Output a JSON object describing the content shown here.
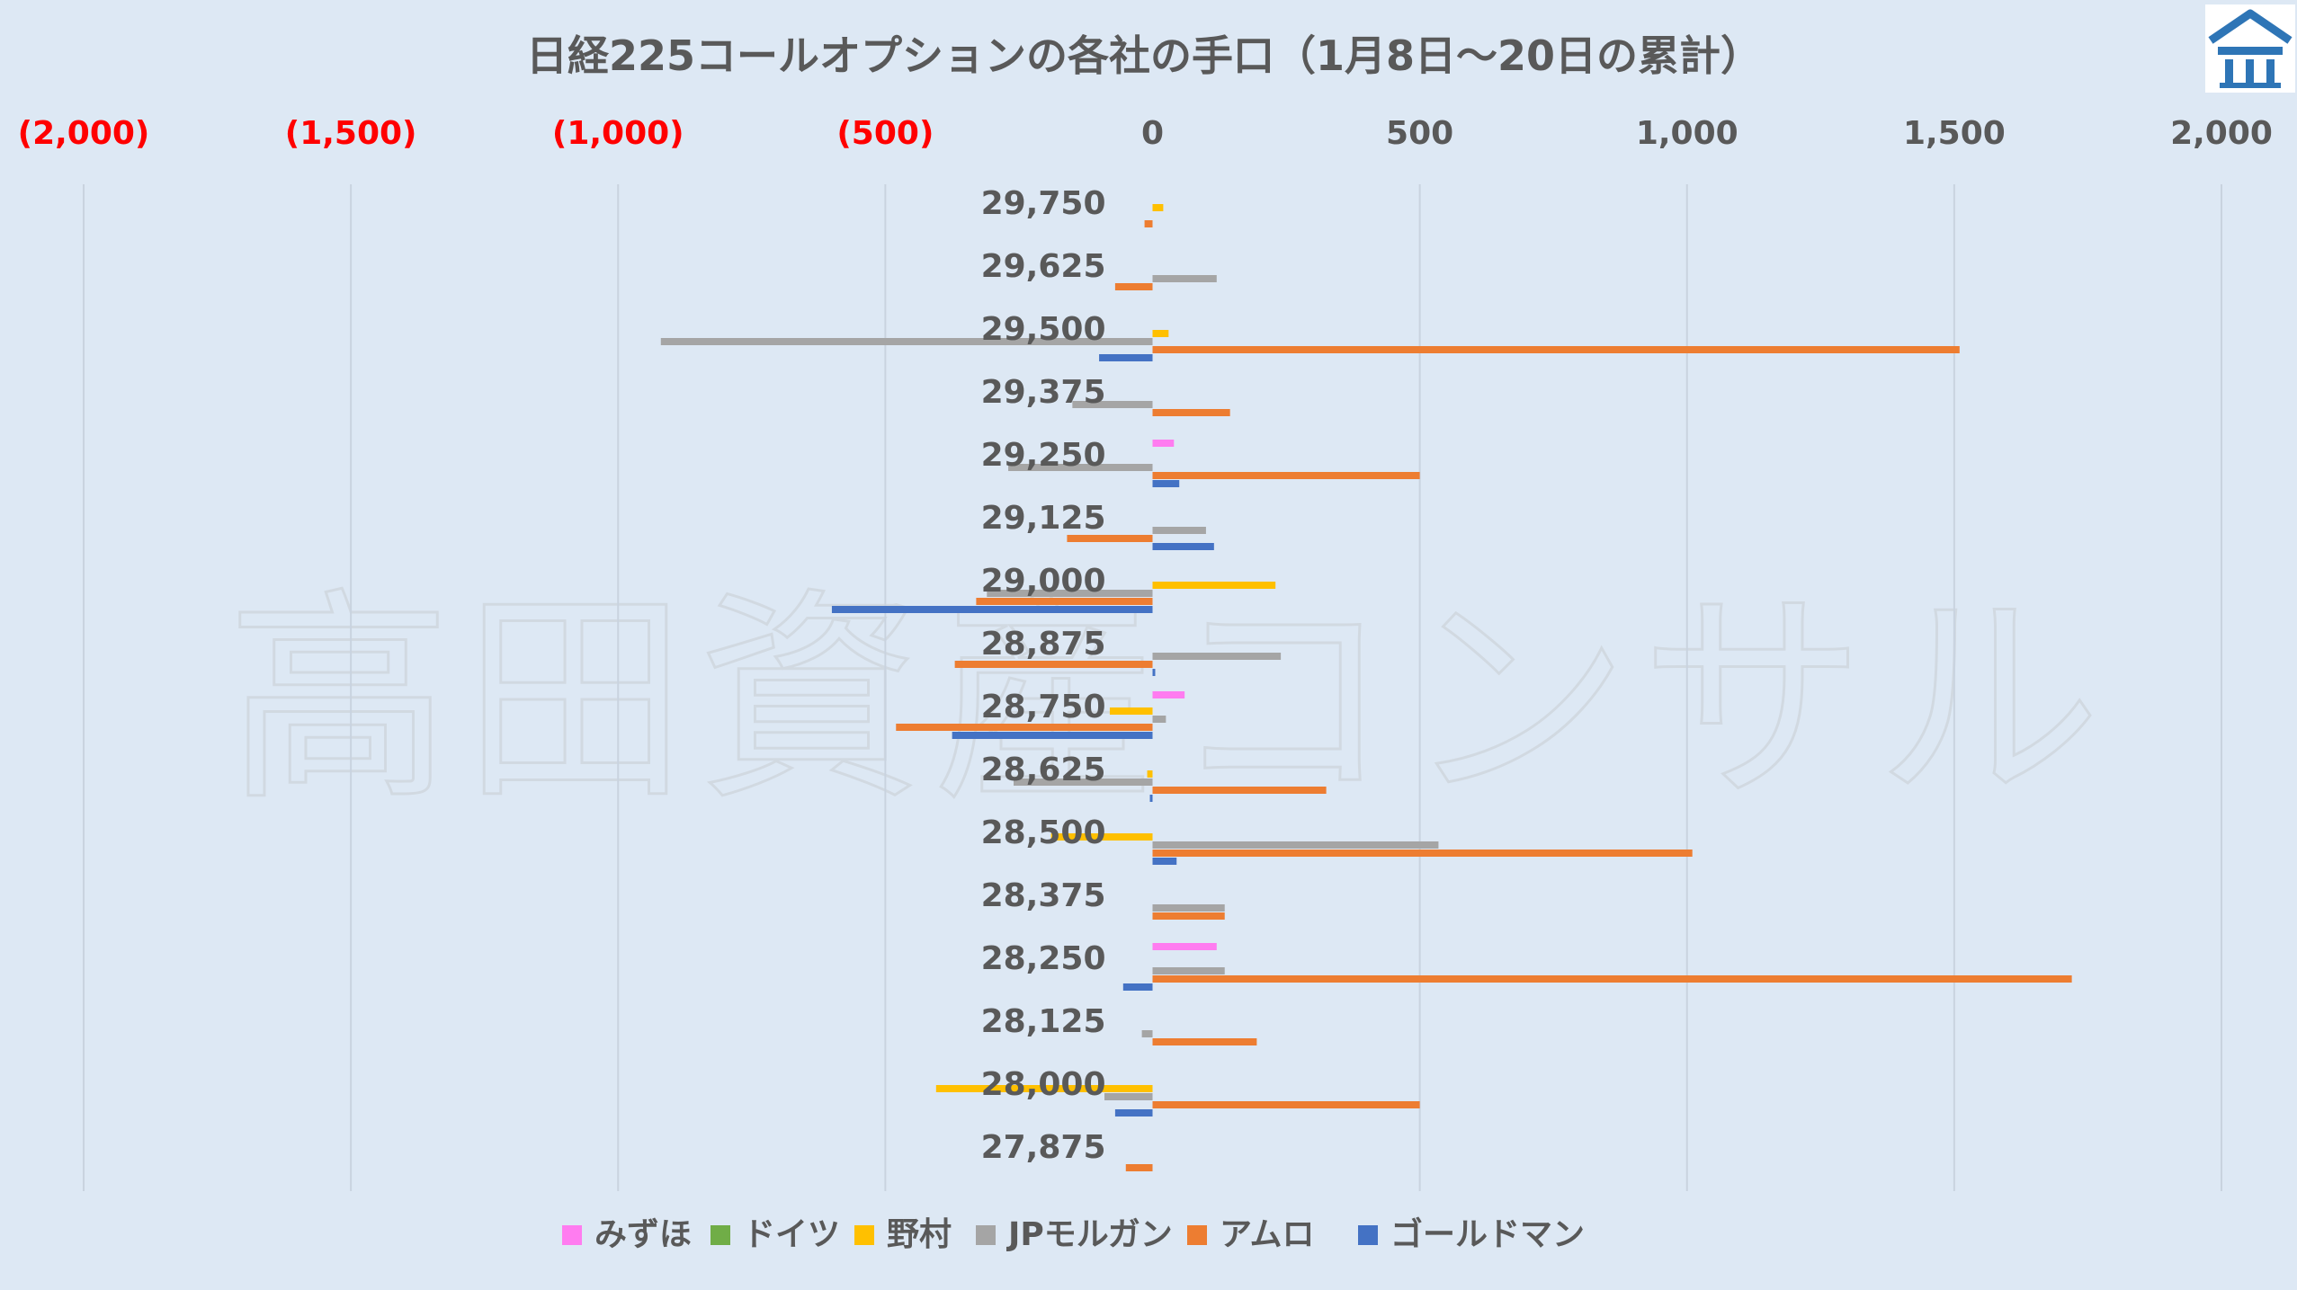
{
  "watermark": "高田資産コンサル",
  "logo": {
    "name": "takada-logo-icon",
    "color": "#2e75b6"
  },
  "chart_data": {
    "type": "bar",
    "orientation": "horizontal",
    "title": "日経225コールオプションの各社の手口（1月8日〜20日の累計）",
    "xlim": [
      -2000,
      2000
    ],
    "x_ticks": [
      -2000,
      -1500,
      -1000,
      -500,
      0,
      500,
      1000,
      1500,
      2000
    ],
    "x_tick_labels": [
      "(2,000)",
      "(1,500)",
      "(1,000)",
      "(500)",
      "0",
      "500",
      "1,000",
      "1,500",
      "2,000"
    ],
    "x_axis_position": "top",
    "negative_label_color": "#ff0000",
    "grid": "vertical",
    "legend_position": "bottom",
    "categories": [
      "29,750",
      "29,625",
      "29,500",
      "29,375",
      "29,250",
      "29,125",
      "29,000",
      "28,875",
      "28,750",
      "28,625",
      "28,500",
      "28,375",
      "28,250",
      "28,125",
      "28,000",
      "27,875"
    ],
    "series": [
      {
        "name": "みずほ",
        "color": "#ff7cf0",
        "values": [
          0,
          0,
          0,
          0,
          40,
          0,
          0,
          0,
          60,
          0,
          0,
          0,
          120,
          0,
          0,
          0
        ]
      },
      {
        "name": "ドイツ",
        "color": "#70ad47",
        "values": [
          0,
          0,
          0,
          0,
          0,
          0,
          0,
          0,
          0,
          0,
          0,
          0,
          0,
          0,
          0,
          0
        ]
      },
      {
        "name": "野村",
        "color": "#ffc000",
        "values": [
          20,
          0,
          30,
          0,
          0,
          0,
          230,
          0,
          -80,
          -10,
          -190,
          0,
          0,
          0,
          -405,
          0
        ]
      },
      {
        "name": "JPモルガン",
        "color": "#a5a5a5",
        "values": [
          0,
          120,
          -920,
          -150,
          -270,
          100,
          -310,
          240,
          25,
          -260,
          535,
          135,
          135,
          -20,
          -90,
          0
        ]
      },
      {
        "name": "アムロ",
        "color": "#ed7d31",
        "values": [
          -15,
          -70,
          1510,
          145,
          500,
          -160,
          -330,
          -370,
          -480,
          325,
          1010,
          135,
          1720,
          195,
          500,
          -50
        ]
      },
      {
        "name": "ゴールドマン",
        "color": "#4472c4",
        "values": [
          0,
          0,
          -100,
          0,
          50,
          115,
          -600,
          5,
          -375,
          -5,
          45,
          0,
          -55,
          0,
          -70,
          0
        ]
      }
    ]
  }
}
